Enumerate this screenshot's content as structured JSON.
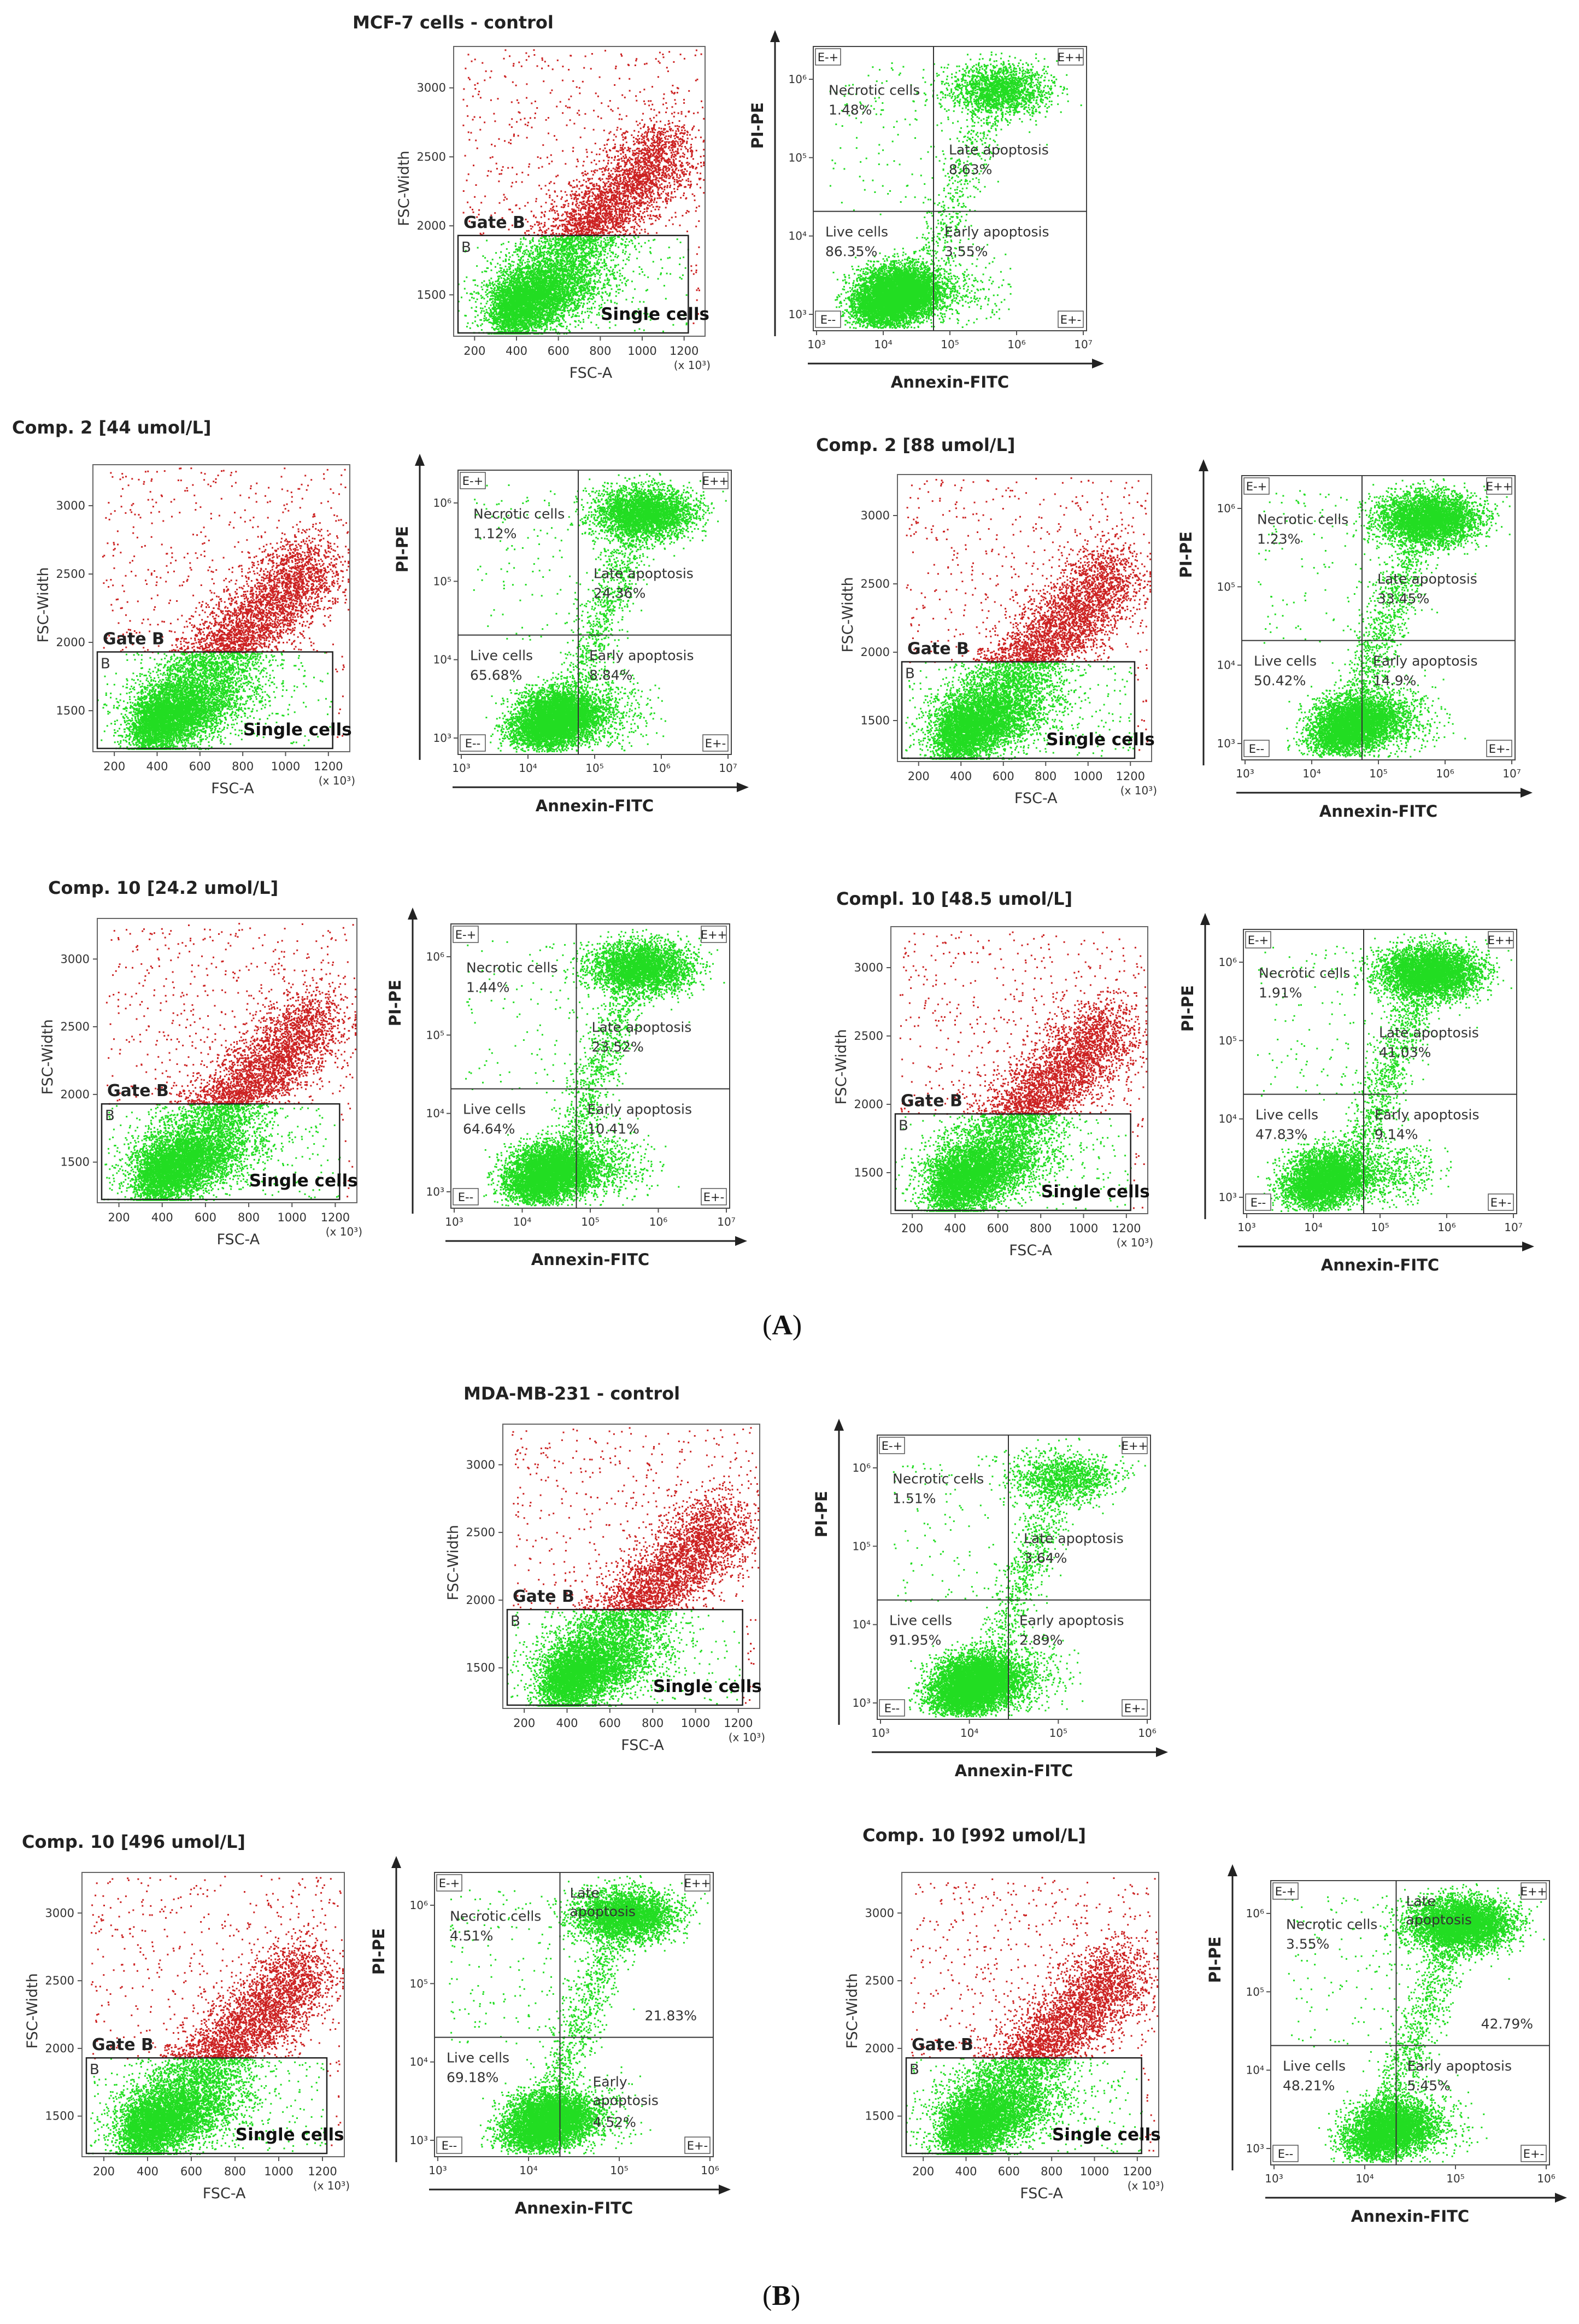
{
  "figure": {
    "panel_a_label": "A",
    "panel_b_label": "B",
    "point_colors": {
      "gated": "#22dd22",
      "ungated": "#cc2222"
    }
  },
  "common": {
    "fsc_x_label": "FSC-A",
    "fsc_y_label": "FSC-Width",
    "fsc_x_unit": "(x 10³)",
    "gate_label": "Gate B",
    "gate_box_label": "B",
    "single_cells_label": "Single cells",
    "annexin_x_label": "Annexin-FITC",
    "annexin_y_label": "PI-PE",
    "q_ul_tag": "E-+",
    "q_ur_tag": "E++",
    "q_ll_tag": "E--",
    "q_lr_tag": "E+-",
    "necrotic_label": "Necrotic cells",
    "late_label": "Late apoptosis",
    "live_label": "Live cells",
    "early_label": "Early apoptosis"
  },
  "chart_data": [
    {
      "type": "scatter",
      "kind": "fsc",
      "title": "MCF-7 cells - control",
      "xlabel": "FSC-A",
      "ylabel": "FSC-Width",
      "x_ticks": [
        "200",
        "400",
        "600",
        "800",
        "1000",
        "1200"
      ],
      "y_ticks": [
        "1500",
        "2000",
        "2500",
        "3000"
      ],
      "xlim": [
        100,
        1300
      ],
      "ylim": [
        1200,
        3300
      ],
      "gate": "Gate B"
    },
    {
      "type": "scatter",
      "kind": "annexin",
      "title": "MCF-7 cells - control",
      "xlabel": "Annexin-FITC",
      "ylabel": "PI-PE",
      "x_ticks": [
        "10³",
        "10⁴",
        "10⁵",
        "10⁶",
        "10⁷"
      ],
      "y_ticks": [
        "10³",
        "10⁴",
        "10⁵",
        "10⁶"
      ],
      "quadrants": {
        "necrotic": "1.48%",
        "late": "8.63%",
        "live": "86.35%",
        "early": "3.55%"
      }
    },
    {
      "type": "scatter",
      "kind": "fsc",
      "title": "Comp. 2 [44 umol/L]",
      "xlabel": "FSC-A",
      "ylabel": "FSC-Width",
      "x_ticks": [
        "200",
        "400",
        "600",
        "800",
        "1000",
        "1200"
      ],
      "y_ticks": [
        "1500",
        "2000",
        "2500",
        "3000"
      ],
      "xlim": [
        100,
        1300
      ],
      "ylim": [
        1200,
        3300
      ],
      "gate": "Gate B"
    },
    {
      "type": "scatter",
      "kind": "annexin",
      "title": "Comp. 2 [44 umol/L]",
      "xlabel": "Annexin-FITC",
      "ylabel": "PI-PE",
      "x_ticks": [
        "10³",
        "10⁴",
        "10⁵",
        "10⁶",
        "10⁷"
      ],
      "y_ticks": [
        "10³",
        "10⁴",
        "10⁵",
        "10⁶"
      ],
      "quadrants": {
        "necrotic": "1.12%",
        "late": "24.36%",
        "live": "65.68%",
        "early": "8.84%"
      }
    },
    {
      "type": "scatter",
      "kind": "fsc",
      "title": "Comp. 2 [88 umol/L]",
      "xlabel": "FSC-A",
      "ylabel": "FSC-Width",
      "x_ticks": [
        "200",
        "400",
        "600",
        "800",
        "1000",
        "1200"
      ],
      "y_ticks": [
        "1500",
        "2000",
        "2500",
        "3000"
      ],
      "xlim": [
        100,
        1300
      ],
      "ylim": [
        1200,
        3300
      ],
      "gate": "Gate B"
    },
    {
      "type": "scatter",
      "kind": "annexin",
      "title": "Comp. 2 [88 umol/L]",
      "xlabel": "Annexin-FITC",
      "ylabel": "PI-PE",
      "x_ticks": [
        "10³",
        "10⁴",
        "10⁵",
        "10⁶",
        "10⁷"
      ],
      "y_ticks": [
        "10³",
        "10⁴",
        "10⁵",
        "10⁶"
      ],
      "quadrants": {
        "necrotic": "1.23%",
        "late": "33.45%",
        "live": "50.42%",
        "early": "14.9%"
      }
    },
    {
      "type": "scatter",
      "kind": "fsc",
      "title": "Comp. 10 [24.2 umol/L]",
      "xlabel": "FSC-A",
      "ylabel": "FSC-Width",
      "x_ticks": [
        "200",
        "400",
        "600",
        "800",
        "1000",
        "1200"
      ],
      "y_ticks": [
        "1500",
        "2000",
        "2500",
        "3000"
      ],
      "xlim": [
        100,
        1300
      ],
      "ylim": [
        1200,
        3300
      ],
      "gate": "Gate B"
    },
    {
      "type": "scatter",
      "kind": "annexin",
      "title": "Comp. 10 [24.2 umol/L]",
      "xlabel": "Annexin-FITC",
      "ylabel": "PI-PE",
      "x_ticks": [
        "10³",
        "10⁴",
        "10⁵",
        "10⁶",
        "10⁷"
      ],
      "y_ticks": [
        "10³",
        "10⁴",
        "10⁵",
        "10⁶"
      ],
      "quadrants": {
        "necrotic": "1.44%",
        "late": "23.52%",
        "live": "64.64%",
        "early": "10.41%"
      }
    },
    {
      "type": "scatter",
      "kind": "fsc",
      "title": "Compl. 10 [48.5 umol/L]",
      "xlabel": "FSC-A",
      "ylabel": "FSC-Width",
      "x_ticks": [
        "200",
        "400",
        "600",
        "800",
        "1000",
        "1200"
      ],
      "y_ticks": [
        "1500",
        "2000",
        "2500",
        "3000"
      ],
      "xlim": [
        100,
        1300
      ],
      "ylim": [
        1200,
        3300
      ],
      "gate": "Gate B"
    },
    {
      "type": "scatter",
      "kind": "annexin",
      "title": "Compl. 10 [48.5 umol/L]",
      "xlabel": "Annexin-FITC",
      "ylabel": "PI-PE",
      "x_ticks": [
        "10³",
        "10⁴",
        "10⁵",
        "10⁶",
        "10⁷"
      ],
      "y_ticks": [
        "10³",
        "10⁴",
        "10⁵",
        "10⁶"
      ],
      "quadrants": {
        "necrotic": "1.91%",
        "late": "41.03%",
        "live": "47.83%",
        "early": "9.14%"
      }
    },
    {
      "type": "scatter",
      "kind": "fsc",
      "title": "MDA-MB-231 - control",
      "xlabel": "FSC-A",
      "ylabel": "FSC-Width",
      "x_ticks": [
        "200",
        "400",
        "600",
        "800",
        "1000",
        "1200"
      ],
      "y_ticks": [
        "1500",
        "2000",
        "2500",
        "3000"
      ],
      "xlim": [
        100,
        1300
      ],
      "ylim": [
        1200,
        3300
      ],
      "gate": "Gate B"
    },
    {
      "type": "scatter",
      "kind": "annexin",
      "title": "MDA-MB-231 - control",
      "xlabel": "Annexin-FITC",
      "ylabel": "PI-PE",
      "x_ticks": [
        "10³",
        "10⁴",
        "10⁵",
        "10⁶"
      ],
      "y_ticks": [
        "10³",
        "10⁴",
        "10⁵",
        "10⁶"
      ],
      "quadrants": {
        "necrotic": "1.51%",
        "late": "3.64%",
        "live": "91.95%",
        "early": "2.89%"
      }
    },
    {
      "type": "scatter",
      "kind": "fsc",
      "title": "Comp. 10 [496 umol/L]",
      "xlabel": "FSC-A",
      "ylabel": "FSC-Width",
      "x_ticks": [
        "200",
        "400",
        "600",
        "800",
        "1000",
        "1200"
      ],
      "y_ticks": [
        "1500",
        "2000",
        "2500",
        "3000"
      ],
      "xlim": [
        100,
        1300
      ],
      "ylim": [
        1200,
        3300
      ],
      "gate": "Gate B"
    },
    {
      "type": "scatter",
      "kind": "annexin",
      "title": "Comp. 10 [496 umol/L]",
      "xlabel": "Annexin-FITC",
      "ylabel": "PI-PE",
      "x_ticks": [
        "10³",
        "10⁴",
        "10⁵",
        "10⁶"
      ],
      "y_ticks": [
        "10³",
        "10⁴",
        "10⁵",
        "10⁶"
      ],
      "quadrants": {
        "necrotic": "4.51%",
        "late": "21.83%",
        "live": "69.18%",
        "early": "4.52%"
      },
      "late_split": [
        "Late",
        "apoptosis"
      ],
      "early_split": [
        "Early",
        "apoptosis"
      ]
    },
    {
      "type": "scatter",
      "kind": "fsc",
      "title": "Comp. 10 [992 umol/L]",
      "xlabel": "FSC-A",
      "ylabel": "FSC-Width",
      "x_ticks": [
        "200",
        "400",
        "600",
        "800",
        "1000",
        "1200"
      ],
      "y_ticks": [
        "1500",
        "2000",
        "2500",
        "3000"
      ],
      "xlim": [
        100,
        1300
      ],
      "ylim": [
        1200,
        3300
      ],
      "gate": "Gate B"
    },
    {
      "type": "scatter",
      "kind": "annexin",
      "title": "Comp. 10 [992 umol/L]",
      "xlabel": "Annexin-FITC",
      "ylabel": "PI-PE",
      "x_ticks": [
        "10³",
        "10⁴",
        "10⁵",
        "10⁶"
      ],
      "y_ticks": [
        "10³",
        "10⁴",
        "10⁵",
        "10⁶"
      ],
      "quadrants": {
        "necrotic": "3.55%",
        "late": "42.79%",
        "live": "48.21%",
        "early": "5.45%"
      },
      "late_split": [
        "Late",
        "apoptosis"
      ]
    }
  ]
}
